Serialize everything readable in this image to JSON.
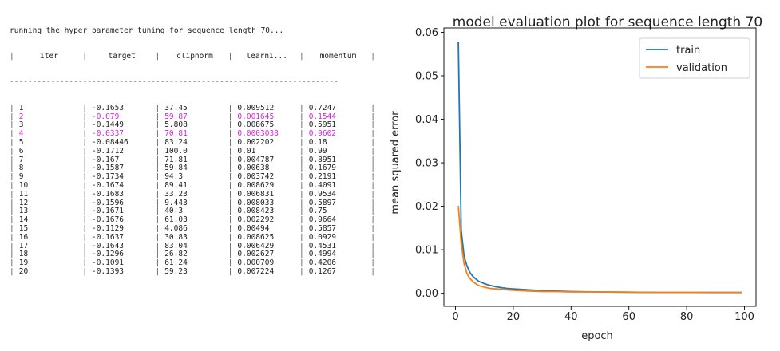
{
  "console": {
    "header_line": "running the hyper parameter tuning for sequence length 70...",
    "columns": [
      "iter",
      "target",
      "clipnorm",
      "learni...",
      "momentum"
    ],
    "rows": [
      {
        "iter": "1",
        "target": "-0.1653",
        "clipnorm": "37.45",
        "learn": "0.009512",
        "momentum": "0.7247",
        "highlight": false
      },
      {
        "iter": "2",
        "target": "-0.079",
        "clipnorm": "59.87",
        "learn": "0.001645",
        "momentum": "0.1544",
        "highlight": true
      },
      {
        "iter": "3",
        "target": "-0.1449",
        "clipnorm": "5.808",
        "learn": "0.008675",
        "momentum": "0.5951",
        "highlight": false
      },
      {
        "iter": "4",
        "target": "-0.0337",
        "clipnorm": "70.81",
        "learn": "0.0003038",
        "momentum": "0.9602",
        "highlight": true
      },
      {
        "iter": "5",
        "target": "-0.08446",
        "clipnorm": "83.24",
        "learn": "0.002202",
        "momentum": "0.18",
        "highlight": false
      },
      {
        "iter": "6",
        "target": "-0.1712",
        "clipnorm": "100.0",
        "learn": "0.01",
        "momentum": "0.99",
        "highlight": false
      },
      {
        "iter": "7",
        "target": "-0.167",
        "clipnorm": "71.81",
        "learn": "0.004787",
        "momentum": "0.8951",
        "highlight": false
      },
      {
        "iter": "8",
        "target": "-0.1587",
        "clipnorm": "59.84",
        "learn": "0.00638",
        "momentum": "0.1679",
        "highlight": false
      },
      {
        "iter": "9",
        "target": "-0.1734",
        "clipnorm": "94.3",
        "learn": "0.003742",
        "momentum": "0.2191",
        "highlight": false
      },
      {
        "iter": "10",
        "target": "-0.1674",
        "clipnorm": "89.41",
        "learn": "0.008629",
        "momentum": "0.4091",
        "highlight": false
      },
      {
        "iter": "11",
        "target": "-0.1683",
        "clipnorm": "33.23",
        "learn": "0.006831",
        "momentum": "0.9534",
        "highlight": false
      },
      {
        "iter": "12",
        "target": "-0.1596",
        "clipnorm": "9.443",
        "learn": "0.008033",
        "momentum": "0.5897",
        "highlight": false
      },
      {
        "iter": "13",
        "target": "-0.1671",
        "clipnorm": "40.3",
        "learn": "0.008423",
        "momentum": "0.75",
        "highlight": false
      },
      {
        "iter": "14",
        "target": "-0.1676",
        "clipnorm": "61.03",
        "learn": "0.002292",
        "momentum": "0.9664",
        "highlight": false
      },
      {
        "iter": "15",
        "target": "-0.1129",
        "clipnorm": "4.086",
        "learn": "0.00494",
        "momentum": "0.5857",
        "highlight": false
      },
      {
        "iter": "16",
        "target": "-0.1637",
        "clipnorm": "30.83",
        "learn": "0.008625",
        "momentum": "0.0929",
        "highlight": false
      },
      {
        "iter": "17",
        "target": "-0.1643",
        "clipnorm": "83.04",
        "learn": "0.006429",
        "momentum": "0.4531",
        "highlight": false
      },
      {
        "iter": "18",
        "target": "-0.1296",
        "clipnorm": "26.82",
        "learn": "0.002627",
        "momentum": "0.4994",
        "highlight": false
      },
      {
        "iter": "19",
        "target": "-0.1091",
        "clipnorm": "61.24",
        "learn": "0.000709",
        "momentum": "0.4206",
        "highlight": false
      },
      {
        "iter": "20",
        "target": "-0.1393",
        "clipnorm": "59.23",
        "learn": "0.007224",
        "momentum": "0.1267",
        "highlight": false
      }
    ],
    "highlight_color": "#d726d7"
  },
  "chart_data": {
    "type": "line",
    "title": "model evaluation plot for sequence length 70",
    "xlabel": "epoch",
    "ylabel": "mean squared error",
    "xlim": [
      -4,
      104
    ],
    "ylim": [
      -0.003,
      0.061
    ],
    "xticks": [
      0,
      20,
      40,
      60,
      80,
      100
    ],
    "yticks": [
      0.0,
      0.01,
      0.02,
      0.03,
      0.04,
      0.05,
      0.06
    ],
    "ytick_labels": [
      "0.00",
      "0.01",
      "0.02",
      "0.03",
      "0.04",
      "0.05",
      "0.06"
    ],
    "grid": false,
    "legend_position": "top-right",
    "series": [
      {
        "name": "train",
        "color": "#1f77b4",
        "x": [
          1,
          2,
          3,
          4,
          5,
          6,
          7,
          8,
          10,
          12,
          14,
          16,
          18,
          20,
          25,
          30,
          35,
          40,
          50,
          60,
          70,
          80,
          90,
          99
        ],
        "y": [
          0.0577,
          0.0145,
          0.0085,
          0.0062,
          0.0048,
          0.0039,
          0.0033,
          0.0028,
          0.0022,
          0.0018,
          0.0015,
          0.0013,
          0.0011,
          0.001,
          0.0008,
          0.0006,
          0.0005,
          0.0004,
          0.0003,
          0.00025,
          0.0002,
          0.0002,
          0.00018,
          0.00017
        ]
      },
      {
        "name": "validation",
        "color": "#ff7f0e",
        "x": [
          1,
          2,
          3,
          4,
          5,
          6,
          7,
          8,
          10,
          12,
          14,
          16,
          18,
          20,
          25,
          30,
          35,
          40,
          50,
          60,
          70,
          80,
          90,
          99
        ],
        "y": [
          0.0201,
          0.0115,
          0.0068,
          0.0045,
          0.0034,
          0.0027,
          0.0022,
          0.0018,
          0.0014,
          0.0011,
          0.001,
          0.0009,
          0.0008,
          0.0007,
          0.0005,
          0.0004,
          0.0004,
          0.0003,
          0.0003,
          0.00025,
          0.0002,
          0.0002,
          0.0002,
          0.0002
        ]
      }
    ]
  }
}
